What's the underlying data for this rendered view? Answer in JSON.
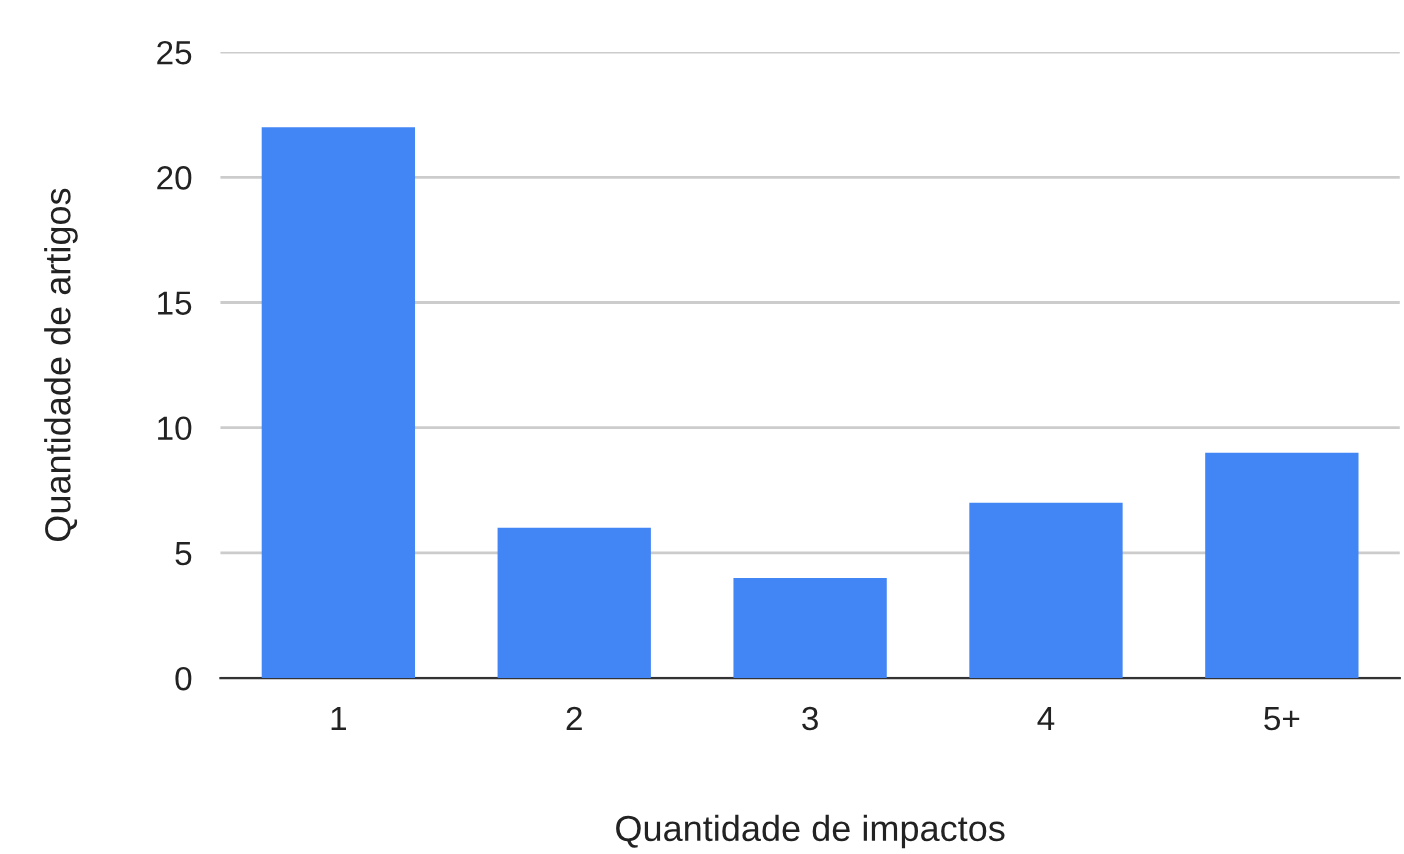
{
  "chart_data": {
    "type": "bar",
    "xlabel": "Quantidade de impactos",
    "ylabel": "Quantidade de artigos",
    "categories": [
      "1",
      "2",
      "3",
      "4",
      "5+"
    ],
    "values": [
      22,
      6,
      4,
      7,
      9
    ],
    "color": "#4285f4",
    "ylim": [
      0,
      25
    ],
    "yticks": [
      0,
      5,
      10,
      15,
      20,
      25
    ],
    "grid": "y"
  }
}
